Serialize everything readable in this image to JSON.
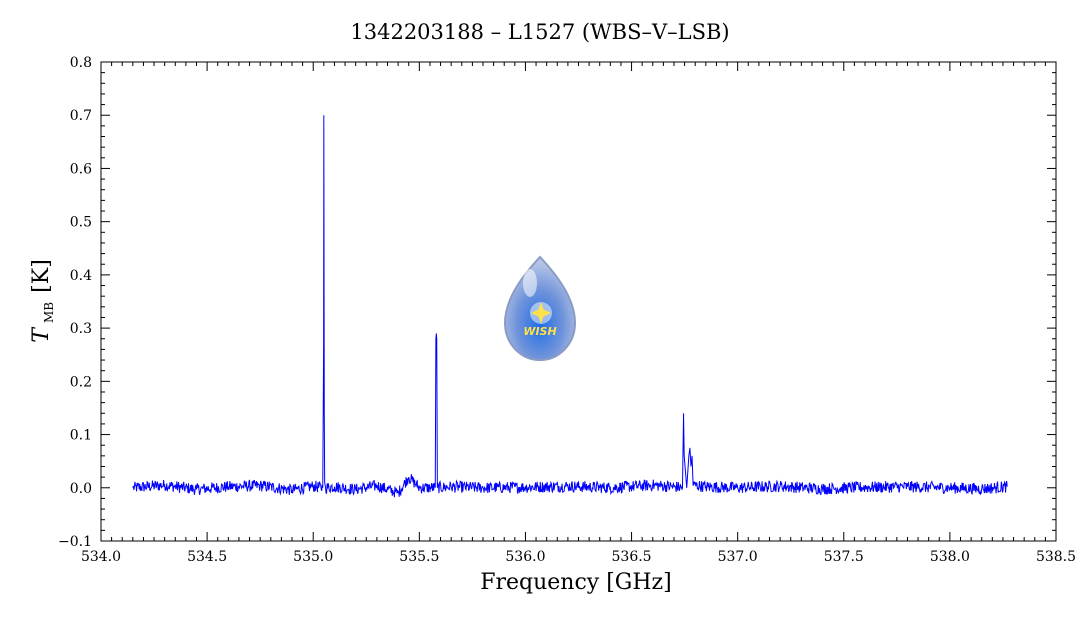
{
  "colors": {
    "series": "#0000ff",
    "axes": "#000000",
    "logo_drop": "#9fb4e6"
  },
  "logo": {
    "text": "WISH",
    "icon": "water-drop-star-logo"
  },
  "chart_data": {
    "type": "line",
    "title": "1342203188 – L1527 (WBS–V–LSB)",
    "xlabel": "Frequency [GHz]",
    "ylabel_main": "T",
    "ylabel_sub": "MB",
    "ylabel_unit": "[K]",
    "xlim": [
      534.0,
      538.5
    ],
    "ylim": [
      -0.1,
      0.8
    ],
    "xticks": [
      "534.0",
      "534.5",
      "535.0",
      "535.5",
      "536.0",
      "536.5",
      "537.0",
      "537.5",
      "538.0",
      "538.5"
    ],
    "yticks": [
      "−0.1",
      "0.0",
      "0.1",
      "0.2",
      "0.3",
      "0.4",
      "0.5",
      "0.6",
      "0.7",
      "0.8"
    ],
    "grid": false,
    "legend": "none",
    "series": [
      {
        "x": [
          534.15,
          534.3,
          534.45,
          534.6,
          534.75,
          534.9,
          535.0,
          535.045,
          535.049,
          535.05,
          535.052,
          535.054,
          535.058,
          535.1,
          535.2,
          535.3,
          535.4,
          535.45,
          535.5,
          535.575,
          535.578,
          535.58,
          535.582,
          535.585,
          535.65,
          535.8,
          536.0,
          536.2,
          536.4,
          536.6,
          536.7,
          536.74,
          536.745,
          536.748,
          536.76,
          536.77,
          536.775,
          536.78,
          536.785,
          536.79,
          536.85,
          537.0,
          537.2,
          537.4,
          537.6,
          537.8,
          538.0,
          538.15,
          538.27
        ],
        "y": [
          0.0,
          0.005,
          -0.003,
          0.002,
          0.004,
          -0.004,
          0.003,
          0.0,
          0.27,
          0.7,
          0.14,
          0.01,
          0.0,
          0.002,
          -0.003,
          0.004,
          -0.01,
          0.02,
          0.0,
          0.0,
          0.28,
          0.29,
          0.28,
          0.0,
          0.002,
          0.0,
          0.001,
          0.003,
          0.0,
          0.005,
          0.002,
          0.0,
          0.14,
          0.06,
          0.0,
          0.06,
          0.075,
          0.04,
          0.06,
          0.005,
          0.002,
          0.0,
          0.003,
          -0.002,
          0.001,
          0.002,
          0.0,
          -0.002,
          0.002
        ]
      }
    ]
  }
}
